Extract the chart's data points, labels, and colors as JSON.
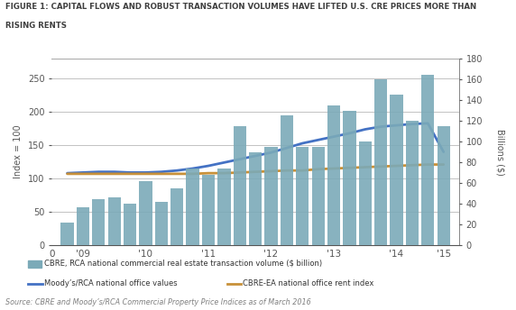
{
  "title_line1": "FIGURE 1: CAPITAL FLOWS AND ROBUST TRANSACTION VOLUMES HAVE LIFTED U.S. CRE PRICES MORE THAN",
  "title_line2": "RISING RENTS",
  "source": "Source: CBRE and Moody’s/RCA Commercial Property Price Indices as of March 2016",
  "ylabel_left": "Index = 100",
  "ylabel_right": "Billions ($)",
  "bar_color": "#7baab8",
  "bar_heights_billions": [
    22,
    36,
    44,
    46,
    40,
    62,
    42,
    55,
    74,
    68,
    74,
    115,
    90,
    95,
    125,
    95,
    95,
    135,
    130,
    100,
    160,
    145,
    120,
    165,
    115
  ],
  "blue_y_index": [
    108,
    109,
    110,
    110,
    109,
    109,
    110,
    112,
    115,
    119,
    124,
    129,
    134,
    139,
    146,
    153,
    158,
    163,
    168,
    174,
    178,
    180,
    182,
    183,
    140
  ],
  "orange_y_index": [
    107,
    107,
    107,
    107,
    107,
    107,
    107,
    107,
    107,
    108,
    108,
    109,
    110,
    111,
    112,
    112,
    114,
    115,
    116,
    117,
    118,
    119,
    120,
    121,
    121
  ],
  "xlim": [
    0,
    26
  ],
  "ylim_left": [
    0,
    280
  ],
  "ylim_right": [
    0,
    180
  ],
  "yticks_left": [
    0,
    50,
    100,
    150,
    200,
    250
  ],
  "yticks_right": [
    0,
    20,
    40,
    60,
    80,
    100,
    120,
    140,
    160,
    180
  ],
  "xtick_pos": [
    0,
    2,
    6,
    10,
    14,
    18,
    22,
    25
  ],
  "xtick_labels": [
    "0",
    "'09",
    "'10",
    "'11",
    "'12",
    "'13",
    "'14",
    "'15"
  ],
  "legend_bar": "CBRE, RCA national commercial real estate transaction volume ($ billion)",
  "legend_blue": "Moody’s/RCA national office values",
  "legend_orange": "CBRE-EA national office rent index",
  "line_blue_color": "#4472c4",
  "line_orange_color": "#c8913a",
  "title_color": "#404040",
  "axis_color": "#555555",
  "source_color": "#808080",
  "grid_color": "#aaaaaa"
}
